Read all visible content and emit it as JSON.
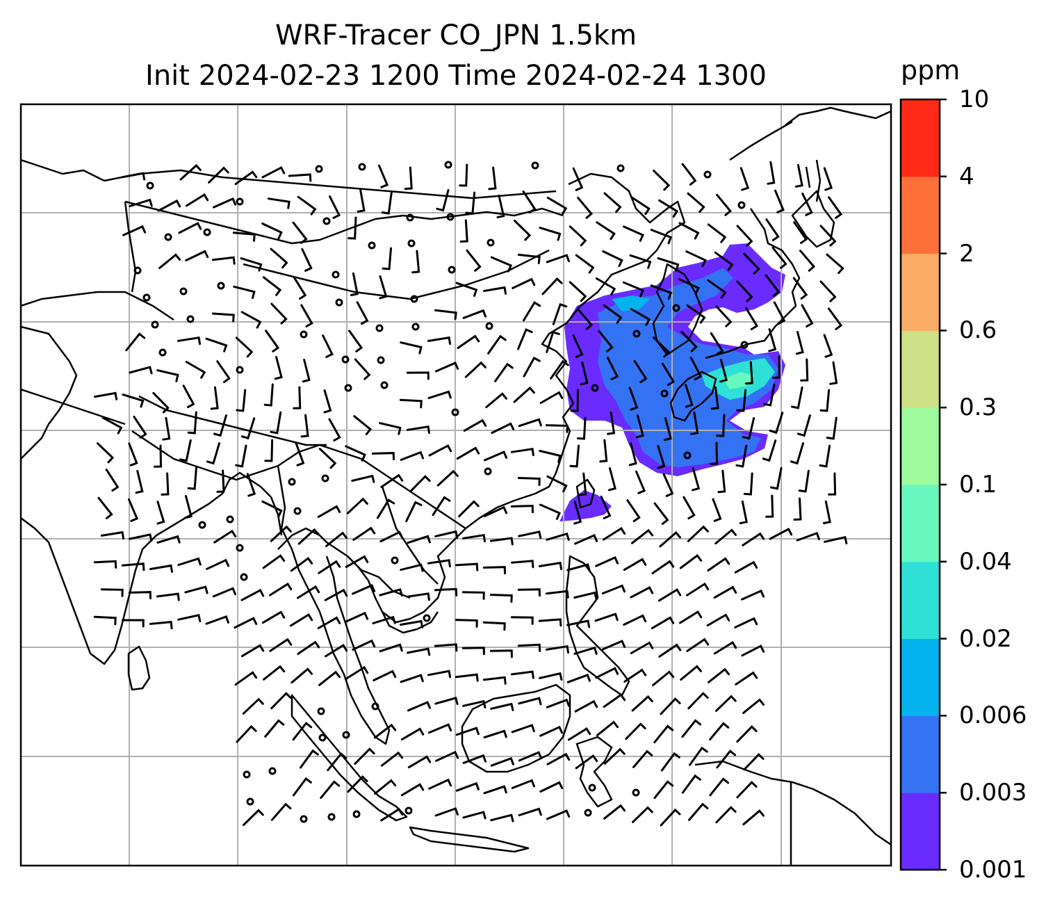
{
  "title": {
    "line1": "WRF-Tracer CO_JPN 1.5km",
    "line2": "Init 2024-02-23 1200 Time 2024-02-24 1300"
  },
  "colorbar": {
    "unit": "ppm",
    "ticks": [
      "0.001",
      "0.003",
      "0.006",
      "0.02",
      "0.04",
      "0.1",
      "0.3",
      "0.6",
      "2",
      "4",
      "10"
    ],
    "colors": [
      "#6a2bff",
      "#3472f4",
      "#04b2ed",
      "#2ee0d6",
      "#66f8bc",
      "#9cfc9c",
      "#cfe187",
      "#fbac64",
      "#ff7039",
      "#ff2a16"
    ]
  },
  "map": {
    "gridlines": true,
    "coastline_color": "#000000",
    "grid_color": "#b0b0b0",
    "barb_color": "#000000"
  }
}
